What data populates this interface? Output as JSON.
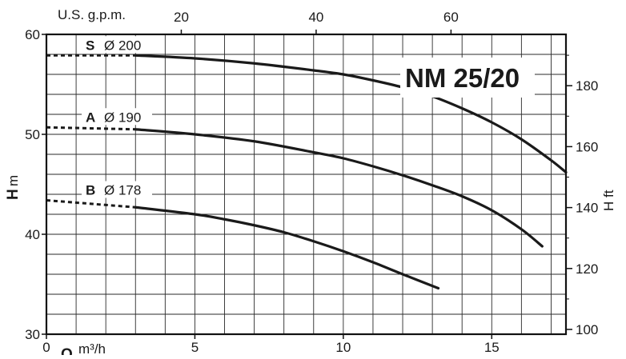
{
  "chart_data": {
    "type": "line",
    "title": "NM 25/20",
    "x_axis_bottom": {
      "label": "m³/h",
      "symbol": "Q",
      "range": [
        0,
        17.5
      ],
      "ticks": [
        0,
        5,
        10,
        15
      ],
      "minor_step": 1
    },
    "x_axis_top": {
      "label": "U.S. g.p.m.",
      "range": [
        0,
        77.05
      ],
      "ticks": [
        20,
        40,
        60
      ]
    },
    "y_axis_left": {
      "symbol": "H",
      "unit": "m",
      "range": [
        30,
        60
      ],
      "ticks": [
        30,
        40,
        50,
        60
      ],
      "minor_step": 2
    },
    "y_axis_right": {
      "label": "H ft",
      "range": [
        98.43,
        196.85
      ],
      "ticks": [
        100,
        120,
        140,
        160,
        180
      ]
    },
    "grid": true,
    "series": [
      {
        "name": "S",
        "diameter": "Ø 200",
        "dashed": {
          "x": [
            0,
            3
          ],
          "y": [
            57.9,
            57.9
          ]
        },
        "solid": {
          "x": [
            3,
            5,
            7,
            9,
            10,
            11,
            12,
            13,
            14,
            15,
            16,
            17,
            17.5
          ],
          "y": [
            57.9,
            57.6,
            57.1,
            56.4,
            56.0,
            55.4,
            54.7,
            53.8,
            52.6,
            51.2,
            49.5,
            47.4,
            46.2
          ]
        }
      },
      {
        "name": "A",
        "diameter": "Ø 190",
        "dashed": {
          "x": [
            0,
            3
          ],
          "y": [
            50.7,
            50.5
          ]
        },
        "solid": {
          "x": [
            3,
            5,
            7,
            9,
            10,
            11,
            12,
            13,
            14,
            15,
            16,
            16.7
          ],
          "y": [
            50.5,
            50.0,
            49.3,
            48.2,
            47.6,
            46.8,
            45.9,
            44.9,
            43.8,
            42.4,
            40.5,
            38.8
          ]
        }
      },
      {
        "name": "B",
        "diameter": "Ø 178",
        "dashed": {
          "x": [
            0,
            3
          ],
          "y": [
            43.4,
            42.7
          ]
        },
        "solid": {
          "x": [
            3,
            5,
            6,
            7,
            8,
            9,
            10,
            11,
            12,
            13.2
          ],
          "y": [
            42.7,
            42.0,
            41.5,
            40.9,
            40.2,
            39.3,
            38.3,
            37.2,
            36.0,
            34.6
          ]
        }
      }
    ]
  }
}
